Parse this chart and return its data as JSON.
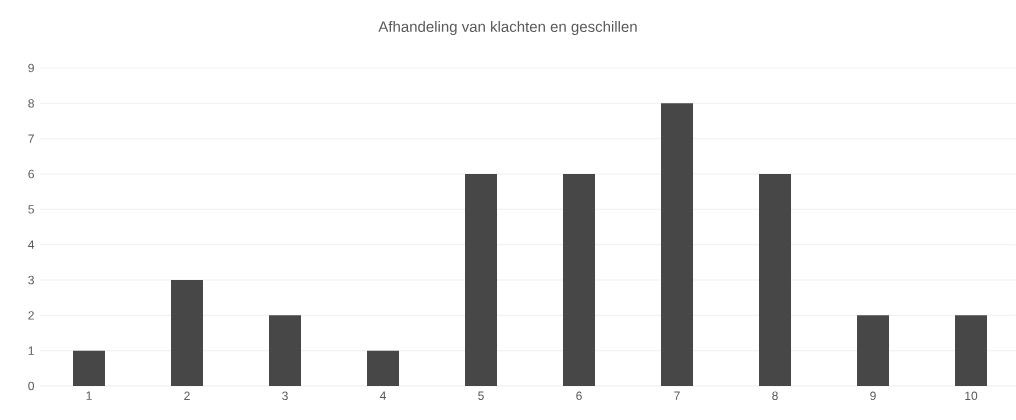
{
  "chart_data": {
    "type": "bar",
    "title": "Afhandeling van klachten en geschillen",
    "categories": [
      "1",
      "2",
      "3",
      "4",
      "5",
      "6",
      "7",
      "8",
      "9",
      "10"
    ],
    "values": [
      1,
      3,
      2,
      1,
      6,
      6,
      8,
      6,
      2,
      2
    ],
    "color": "#474747",
    "ylim": [
      0,
      9
    ],
    "yticks": [
      0,
      1,
      2,
      3,
      4,
      5,
      6,
      7,
      8,
      9
    ],
    "grid": "y"
  }
}
